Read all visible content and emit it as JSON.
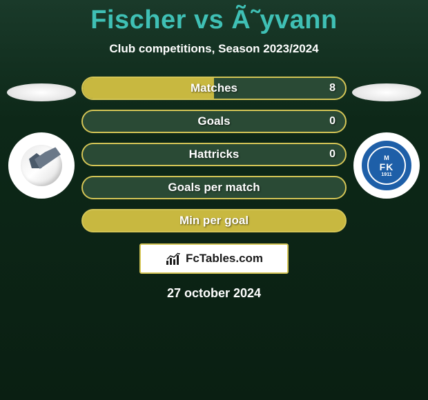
{
  "title": "Fischer vs Ã˜yvann",
  "subtitle": "Club competitions, Season 2023/2024",
  "date": "27 october 2024",
  "brand": "FcTables.com",
  "left_club": {
    "name": "generic-club"
  },
  "right_club": {
    "name": "Molde FK",
    "badge_text": "FK",
    "badge_year": "1911",
    "badge_bg": "#1e5fa8"
  },
  "colors": {
    "title": "#3fc0b5",
    "bar_border": "#d4c556",
    "bar_fill_dark": "#2a4a35",
    "bar_fill_active": "#c8b840"
  },
  "stats": [
    {
      "label": "Matches",
      "value": "8",
      "left_width_pct": 50,
      "show_value": true
    },
    {
      "label": "Goals",
      "value": "0",
      "left_width_pct": 0,
      "show_value": true
    },
    {
      "label": "Hattricks",
      "value": "0",
      "left_width_pct": 0,
      "show_value": true
    },
    {
      "label": "Goals per match",
      "value": "",
      "left_width_pct": 0,
      "show_value": false
    },
    {
      "label": "Min per goal",
      "value": "",
      "left_width_pct": 100,
      "show_value": false,
      "full_active": true
    }
  ]
}
